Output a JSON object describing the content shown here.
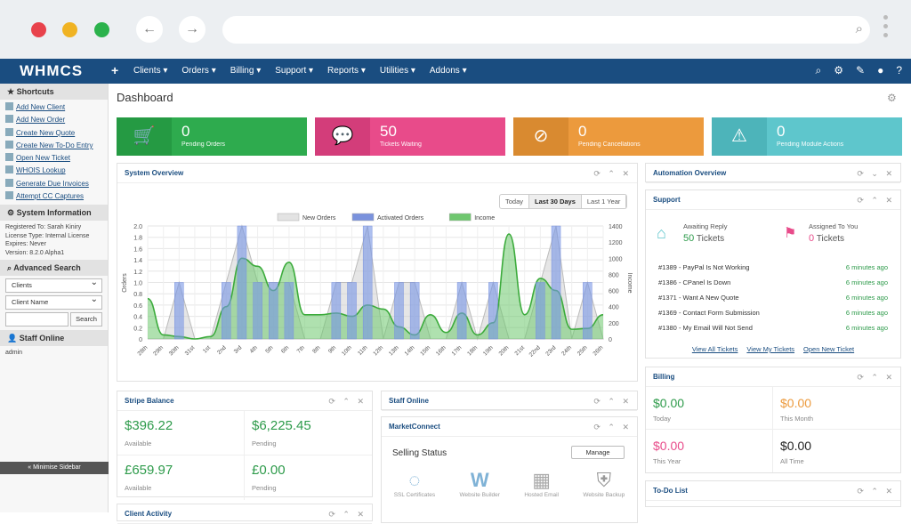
{
  "header": {
    "logo": "WHMCS",
    "plus": "+",
    "menu": [
      "Clients ▾",
      "Orders ▾",
      "Billing ▾",
      "Support ▾",
      "Reports ▾",
      "Utilities ▾",
      "Addons ▾"
    ]
  },
  "colors": {
    "nav": "#1a4d80",
    "green": "#2eab4e",
    "pink": "#e84b8a",
    "orange": "#ec9a3d",
    "teal": "#5ec6cc"
  },
  "sidebar": {
    "shortcuts_title": "Shortcuts",
    "shortcuts": [
      "Add New Client",
      "Add New Order",
      "Create New Quote",
      "Create New To-Do Entry",
      "Open New Ticket",
      "WHOIS Lookup",
      "Generate Due Invoices",
      "Attempt CC Captures"
    ],
    "sysinfo_title": "System Information",
    "sysinfo": [
      "Registered To: Sarah Kiniry",
      "License Type: Internal License",
      "Expires: Never",
      "Version: 8.2.0 Alpha1"
    ],
    "adv_title": "Advanced Search",
    "select1": "Clients",
    "select2": "Client Name",
    "search_btn": "Search",
    "staff_title": "Staff Online",
    "staff_user": "admin",
    "minimise": "« Minimise Sidebar"
  },
  "page_title": "Dashboard",
  "stats": [
    {
      "value": "0",
      "label": "Pending Orders",
      "icon": "cart-icon"
    },
    {
      "value": "50",
      "label": "Tickets Waiting",
      "icon": "chat-icon"
    },
    {
      "value": "0",
      "label": "Pending Cancellations",
      "icon": "ban-icon"
    },
    {
      "value": "0",
      "label": "Pending Module Actions",
      "icon": "warning-icon"
    }
  ],
  "overview": {
    "title": "System Overview",
    "ranges": [
      "Today",
      "Last 30 Days",
      "Last 1 Year"
    ],
    "active_range": "Last 30 Days"
  },
  "chart_data": {
    "type": "bar",
    "legend": [
      "New Orders",
      "Activated Orders",
      "Income"
    ],
    "ylabel": "Orders",
    "y2label": "Income",
    "ylim": [
      0,
      2.0
    ],
    "y2lim": [
      0,
      1400
    ],
    "yticks": [
      "0",
      "0.2",
      "0.4",
      "0.6",
      "0.8",
      "1.0",
      "1.2",
      "1.4",
      "1.6",
      "1.8",
      "2.0"
    ],
    "y2ticks": [
      "0",
      "200",
      "400",
      "600",
      "800",
      "1000",
      "1200",
      "1400"
    ],
    "categories": [
      "28th",
      "29th",
      "30th",
      "31st",
      "1st",
      "2nd",
      "3rd",
      "4th",
      "5th",
      "6th",
      "7th",
      "8th",
      "9th",
      "10th",
      "11th",
      "12th",
      "13th",
      "14th",
      "15th",
      "16th",
      "17th",
      "18th",
      "19th",
      "20th",
      "21st",
      "22nd",
      "23rd",
      "24th",
      "25th",
      "26th"
    ],
    "series": [
      {
        "name": "New Orders",
        "values": [
          0,
          0,
          1,
          0,
          0,
          1,
          2,
          1,
          1,
          1,
          0,
          0,
          1,
          1,
          2,
          0,
          1,
          1,
          0,
          0,
          1,
          0,
          1,
          0,
          0,
          1,
          2,
          0,
          1,
          0
        ]
      },
      {
        "name": "Activated Orders",
        "values": [
          0,
          0,
          1,
          0,
          0,
          1,
          2,
          1,
          1,
          1,
          0,
          0,
          1,
          1,
          2,
          0,
          1,
          1,
          0,
          0,
          1,
          0,
          1,
          0,
          0,
          1,
          2,
          0,
          1,
          0
        ]
      },
      {
        "name": "Income",
        "values": [
          500,
          50,
          30,
          0,
          30,
          400,
          1000,
          900,
          600,
          950,
          300,
          300,
          320,
          280,
          420,
          370,
          150,
          50,
          300,
          80,
          320,
          50,
          200,
          1300,
          300,
          750,
          600,
          120,
          130,
          300
        ]
      }
    ]
  },
  "stripe": {
    "title": "Stripe Balance",
    "items": [
      {
        "v": "$396.22",
        "c": "Available"
      },
      {
        "v": "$6,225.45",
        "c": "Pending"
      },
      {
        "v": "£659.97",
        "c": "Available"
      },
      {
        "v": "£0.00",
        "c": "Pending"
      }
    ]
  },
  "staff_online": {
    "title": "Staff Online"
  },
  "marketconnect": {
    "title": "MarketConnect",
    "selling": "Selling Status",
    "manage": "Manage",
    "products": [
      "SSL Certificates",
      "Website Builder",
      "Hosted Email",
      "Website Backup"
    ]
  },
  "client_activity": {
    "title": "Client Activity"
  },
  "automation": {
    "title": "Automation Overview"
  },
  "support": {
    "title": "Support",
    "awaiting_label": "Awaiting Reply",
    "awaiting_value": "50",
    "awaiting_unit": "Tickets",
    "assigned_label": "Assigned To You",
    "assigned_value": "0",
    "assigned_unit": "Tickets",
    "tickets": [
      {
        "t": "#1389 - PayPal Is Not Working",
        "time": "6 minutes ago"
      },
      {
        "t": "#1386 - CPanel Is Down",
        "time": "6 minutes ago"
      },
      {
        "t": "#1371 - Want A New Quote",
        "time": "6 minutes ago"
      },
      {
        "t": "#1369 - Contact Form Submission",
        "time": "6 minutes ago"
      },
      {
        "t": "#1380 - My Email Will Not Send",
        "time": "6 minutes ago"
      }
    ],
    "links": [
      "View All Tickets",
      "View My Tickets",
      "Open New Ticket"
    ]
  },
  "billing": {
    "title": "Billing",
    "cells": [
      {
        "v": "$0.00",
        "c": "Today",
        "col": "#2e9b4b"
      },
      {
        "v": "$0.00",
        "c": "This Month",
        "col": "#ec9a3d"
      },
      {
        "v": "$0.00",
        "c": "This Year",
        "col": "#e84b8a"
      },
      {
        "v": "$0.00",
        "c": "All Time",
        "col": "#222"
      }
    ]
  },
  "todo": {
    "title": "To-Do List"
  }
}
